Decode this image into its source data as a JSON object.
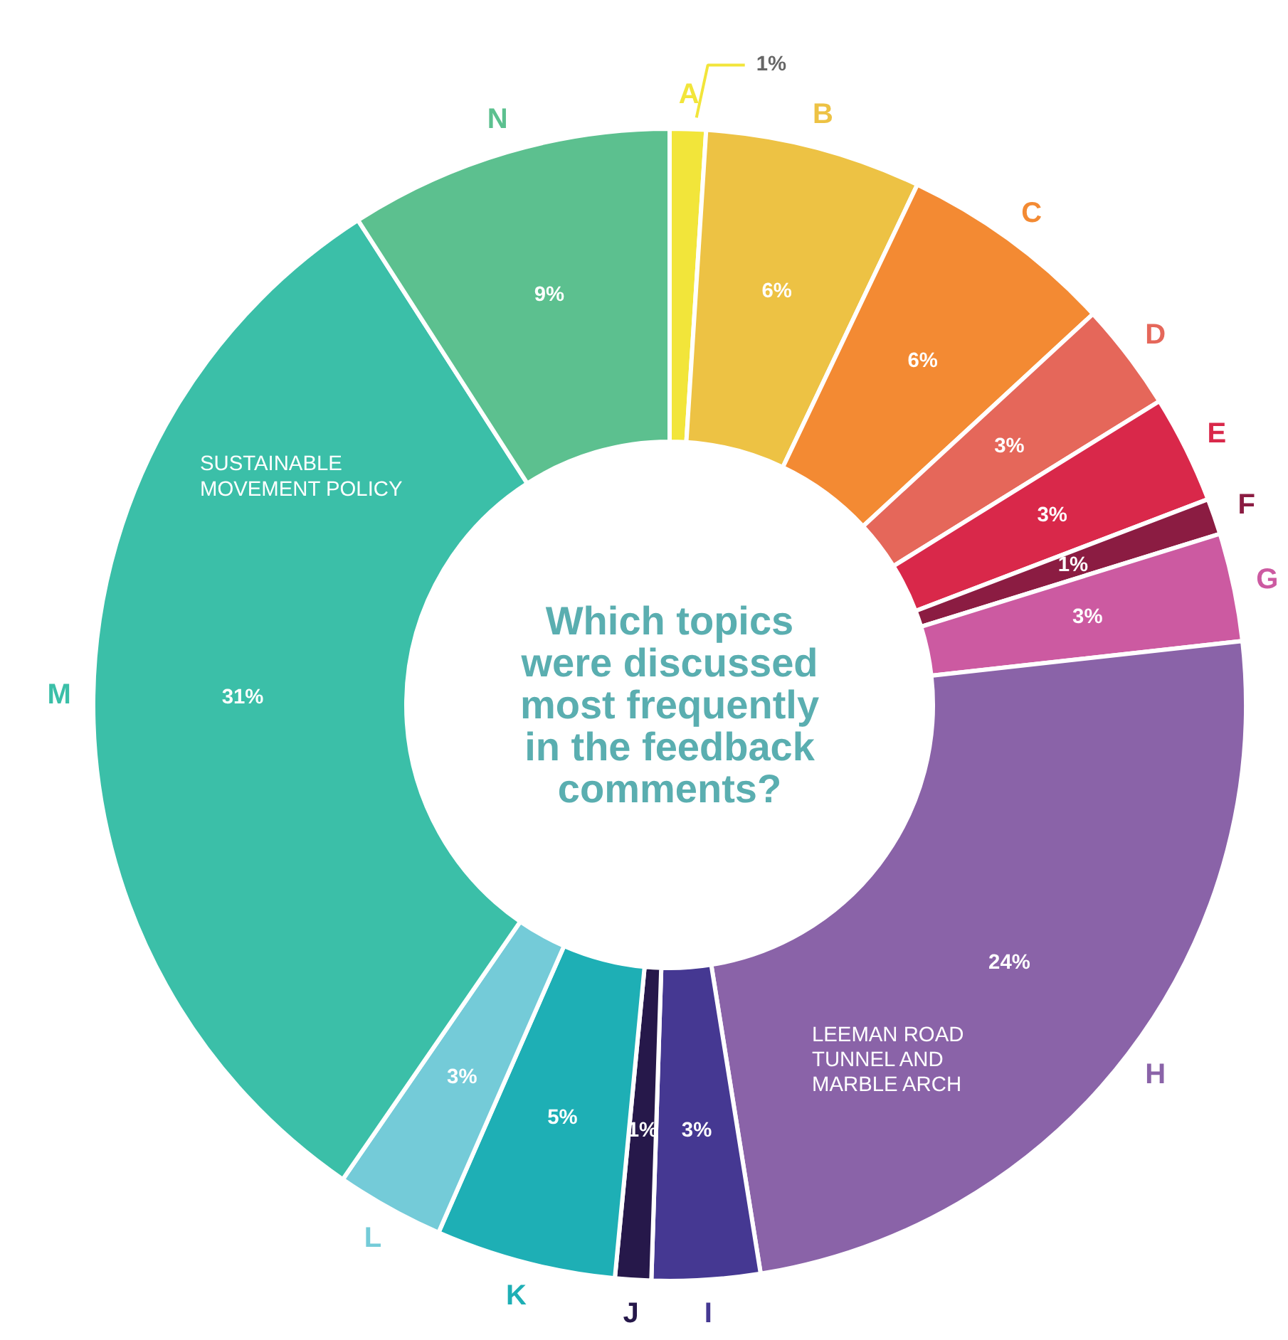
{
  "chart_data": {
    "type": "donut",
    "title": "Which topics were discussed most frequently in the feedback comments?",
    "categories": [
      "A",
      "B",
      "C",
      "D",
      "E",
      "F",
      "G",
      "H",
      "I",
      "J",
      "K",
      "L",
      "M",
      "N"
    ],
    "values": [
      1,
      6,
      6,
      3,
      3,
      1,
      3,
      24,
      3,
      1,
      5,
      3,
      31,
      9
    ],
    "colors": [
      "#f2e53a",
      "#edc244",
      "#f38a33",
      "#e5675a",
      "#d9284a",
      "#8b1c42",
      "#cc5aa1",
      "#8a63a8",
      "#453892",
      "#26184a",
      "#1eafb5",
      "#74cbd8",
      "#3bbfa8",
      "#5cc08f"
    ],
    "value_labels": [
      "1%",
      "6%",
      "6%",
      "3%",
      "3%",
      "1%",
      "3%",
      "24%",
      "3%",
      "1%",
      "5%",
      "3%",
      "31%",
      "9%"
    ],
    "annotations": [
      "SUSTAINABLE MOVEMENT POLICY",
      "LEEMAN ROAD TUNNEL AND MARBLE ARCH"
    ]
  }
}
